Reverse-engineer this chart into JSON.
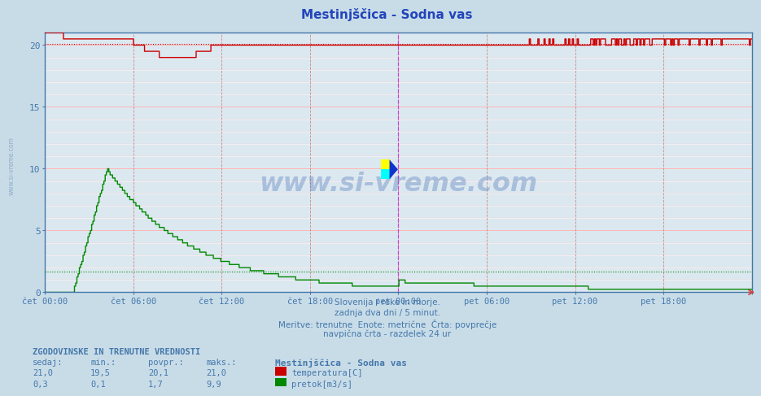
{
  "title": "Mestinjščica - Sodna vas",
  "bg_color": "#c8dce8",
  "plot_bg_color": "#dce8f0",
  "title_color": "#2244bb",
  "border_color": "#4477aa",
  "axis_label_color": "#4477aa",
  "vgrid_color": "#cc8888",
  "hgrid_color": "#ddbbbb",
  "temp_color": "#cc0000",
  "flow_color": "#008800",
  "vline_color": "#cc44cc",
  "watermark_color": "#2255aa",
  "watermark_alpha": 0.28,
  "x_labels": [
    "čet 00:00",
    "čet 06:00",
    "čet 12:00",
    "čet 18:00",
    "pet 00:00",
    "pet 06:00",
    "pet 12:00",
    "pet 18:00"
  ],
  "y_ticks": [
    0,
    5,
    10,
    15,
    20
  ],
  "y_max": 21.0,
  "y_min": 0.0,
  "x_max": 2.0,
  "vline_at": 1.0,
  "temp_avg": 20.1,
  "flow_avg": 1.7,
  "subtitle_lines": [
    "Slovenija / reke in morje.",
    "zadnja dva dni / 5 minut.",
    "Meritve: trenutne  Enote: metrične  Črta: povprečje",
    "navpična črta - razdelek 24 ur"
  ],
  "footer_header": "ZGODOVINSKE IN TRENUTNE VREDNOSTI",
  "footer_cols": [
    "sedaj:",
    "min.:",
    "povpr.:",
    "maks.:"
  ],
  "temp_stats": [
    "21,0",
    "19,5",
    "20,1",
    "21,0"
  ],
  "flow_stats": [
    "0,3",
    "0,1",
    "1,7",
    "9,9"
  ],
  "legend_station": "Mestinjščica - Sodna vas",
  "legend_temp_label": "temperatura[C]",
  "legend_flow_label": "pretok[m3/s]"
}
